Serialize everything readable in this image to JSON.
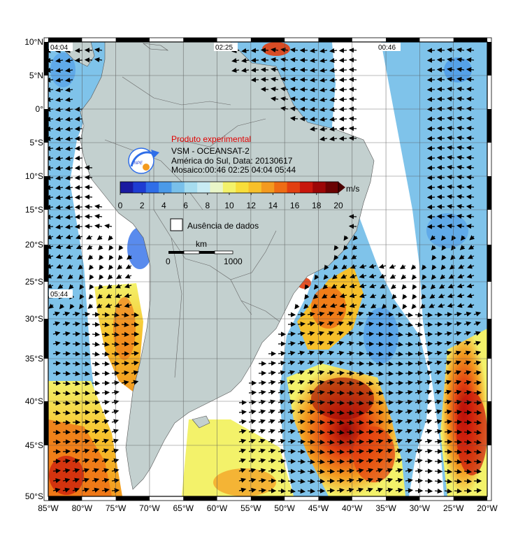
{
  "map": {
    "lon_ticks": [
      "85°W",
      "80°W",
      "75°W",
      "70°W",
      "65°W",
      "60°W",
      "55°W",
      "50°W",
      "45°W",
      "40°W",
      "35°W",
      "30°W",
      "25°W",
      "20°W"
    ],
    "lat_ticks": [
      "10°N",
      "5°N",
      "0°",
      "5°S",
      "10°S",
      "15°S",
      "20°S",
      "25°S",
      "30°S",
      "35°S",
      "40°S",
      "45°S",
      "50°S"
    ],
    "pass_times": [
      "04:04",
      "02:25",
      "00:46",
      "05:44"
    ],
    "ocean_color": "#ffffff",
    "land_color": "#c3d0cf"
  },
  "info": {
    "experimental": "Produto experimental",
    "product": "VSM - OCEANSAT-2",
    "region_date": "América do Sul, Data: 20130617",
    "mosaic": "Mosaico:00:46 02:25 04:04 05:44",
    "logo_text": "INPE"
  },
  "colorbar": {
    "unit": "m/s",
    "ticks": [
      "0",
      "2",
      "4",
      "6",
      "8",
      "10",
      "12",
      "14",
      "16",
      "18",
      "20"
    ],
    "colors": [
      "#1a1aa0",
      "#1e3cd2",
      "#2f6ee8",
      "#4b9ae8",
      "#79c0ea",
      "#a6dcef",
      "#c8ebf3",
      "#e9f6c8",
      "#f3f26a",
      "#f8de3a",
      "#f7c02a",
      "#f39a1f",
      "#ee6c14",
      "#e23f10",
      "#c8160c",
      "#9c0606",
      "#6a0202"
    ]
  },
  "legend": {
    "no_data": "Ausência de dados"
  },
  "scale": {
    "unit": "km",
    "min": "0",
    "max": "1000"
  }
}
